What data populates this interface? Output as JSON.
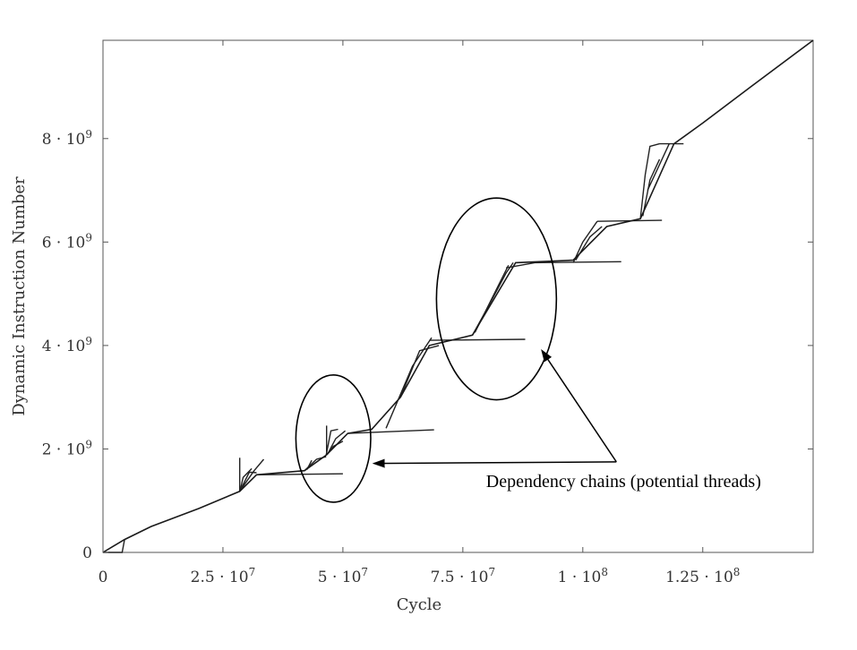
{
  "chart_data": {
    "type": "line",
    "title": "",
    "xlabel": "Cycle",
    "ylabel": "Dynamic Instruction Number",
    "xlim": [
      0,
      148000000
    ],
    "ylim": [
      0,
      9900000000
    ],
    "grid": false,
    "x_ticks": [
      {
        "value": 0,
        "label": "0"
      },
      {
        "value": 25000000,
        "label": "2.5 · 10",
        "exp": "7"
      },
      {
        "value": 50000000,
        "label": "5 · 10",
        "exp": "7"
      },
      {
        "value": 75000000,
        "label": "7.5 · 10",
        "exp": "7"
      },
      {
        "value": 100000000,
        "label": "1 · 10",
        "exp": "8"
      },
      {
        "value": 125000000,
        "label": "1.25 · 10",
        "exp": "8"
      }
    ],
    "y_ticks": [
      {
        "value": 0,
        "label": "0"
      },
      {
        "value": 2000000000,
        "label": "2 · 10",
        "exp": "9"
      },
      {
        "value": 4000000000,
        "label": "4 · 10",
        "exp": "9"
      },
      {
        "value": 6000000000,
        "label": "6 · 10",
        "exp": "9"
      },
      {
        "value": 8000000000,
        "label": "8 · 10",
        "exp": "9"
      }
    ],
    "main_series": {
      "x": [
        0,
        4500000,
        10000000,
        20000000,
        28500000,
        32000000,
        42000000,
        46500000,
        51000000,
        56000000,
        62000000,
        68000000,
        77000000,
        86000000,
        98000000,
        105000000,
        112000000,
        119000000,
        125000000,
        135000000,
        148000000
      ],
      "y": [
        0,
        250000000,
        500000000,
        850000000,
        1180000000,
        1500000000,
        1580000000,
        1880000000,
        2300000000,
        2380000000,
        3000000000,
        4000000000,
        4200000000,
        5600000000,
        5650000000,
        6300000000,
        6450000000,
        7900000000,
        8300000000,
        9000000000,
        9900000000
      ]
    },
    "branches": [
      {
        "x": [
          4500000,
          4000000,
          0
        ],
        "y": [
          250000000,
          0,
          0
        ]
      },
      {
        "x": [
          28500000,
          30500000,
          32000000
        ],
        "y": [
          1180000000,
          1550000000,
          1540000000
        ]
      },
      {
        "x": [
          28600000,
          29200000,
          31000000
        ],
        "y": [
          1200000000,
          1450000000,
          1620000000
        ]
      },
      {
        "x": [
          29000000,
          31500000,
          33500000
        ],
        "y": [
          1250000000,
          1580000000,
          1800000000
        ]
      },
      {
        "x": [
          28500000,
          28500000
        ],
        "y": [
          1180000000,
          1830000000
        ]
      },
      {
        "x": [
          32000000,
          50000000
        ],
        "y": [
          1500000000,
          1520000000
        ]
      },
      {
        "x": [
          42000000,
          44500000,
          46500000
        ],
        "y": [
          1580000000,
          1800000000,
          1850000000
        ]
      },
      {
        "x": [
          42500000,
          43500000
        ],
        "y": [
          1600000000,
          1780000000
        ]
      },
      {
        "x": [
          46500000,
          47500000,
          49000000
        ],
        "y": [
          1880000000,
          2350000000,
          2380000000
        ]
      },
      {
        "x": [
          46800000,
          48500000,
          50500000
        ],
        "y": [
          1900000000,
          2200000000,
          2350000000
        ]
      },
      {
        "x": [
          46700000,
          48000000,
          50000000
        ],
        "y": [
          1890000000,
          2050000000,
          2150000000
        ]
      },
      {
        "x": [
          46600000,
          46600000
        ],
        "y": [
          1880000000,
          2450000000
        ]
      },
      {
        "x": [
          51000000,
          69000000
        ],
        "y": [
          2300000000,
          2370000000
        ]
      },
      {
        "x": [
          59000000,
          64500000,
          68500000
        ],
        "y": [
          2400000000,
          3600000000,
          4150000000
        ]
      },
      {
        "x": [
          62000000,
          66000000,
          70000000
        ],
        "y": [
          3000000000,
          3900000000,
          4000000000
        ]
      },
      {
        "x": [
          68000000,
          88000000
        ],
        "y": [
          4100000000,
          4120000000
        ]
      },
      {
        "x": [
          77000000,
          80000000,
          84000000,
          85500000
        ],
        "y": [
          4200000000,
          4700000000,
          5400000000,
          5600000000
        ]
      },
      {
        "x": [
          77500000,
          81000000,
          84500000
        ],
        "y": [
          4250000000,
          4900000000,
          5550000000
        ]
      },
      {
        "x": [
          84000000,
          90000000,
          108000000
        ],
        "y": [
          5500000000,
          5600000000,
          5620000000
        ]
      },
      {
        "x": [
          98000000,
          100000000,
          103000000
        ],
        "y": [
          5600000000,
          6000000000,
          6400000000
        ]
      },
      {
        "x": [
          98500000,
          101500000,
          104000000
        ],
        "y": [
          5650000000,
          6100000000,
          6300000000
        ]
      },
      {
        "x": [
          103000000,
          116500000
        ],
        "y": [
          6400000000,
          6420000000
        ]
      },
      {
        "x": [
          112000000,
          113000000,
          114000000,
          116000000
        ],
        "y": [
          6450000000,
          7300000000,
          7850000000,
          7900000000
        ]
      },
      {
        "x": [
          112500000,
          114000000,
          116000000
        ],
        "y": [
          6500000000,
          7200000000,
          7600000000
        ]
      },
      {
        "x": [
          113500000,
          115500000,
          118000000
        ],
        "y": [
          7000000000,
          7400000000,
          7900000000
        ]
      },
      {
        "x": [
          116000000,
          121000000
        ],
        "y": [
          7900000000,
          7900000000
        ]
      }
    ],
    "circles": [
      {
        "cx": 48000000,
        "cy": 2200000000,
        "rx": 7800000,
        "ry": 1230000000
      },
      {
        "cx": 82000000,
        "cy": 4900000000,
        "rx": 12500000,
        "ry": 1950000000
      }
    ],
    "annotation": {
      "text": "Dependency chains (potential threads)",
      "anchor_x": 107000000,
      "anchor_y": 1750000000,
      "targets": [
        {
          "x": 56500000,
          "y": 1720000000
        },
        {
          "x": 91500000,
          "y": 3900000000
        }
      ]
    }
  }
}
